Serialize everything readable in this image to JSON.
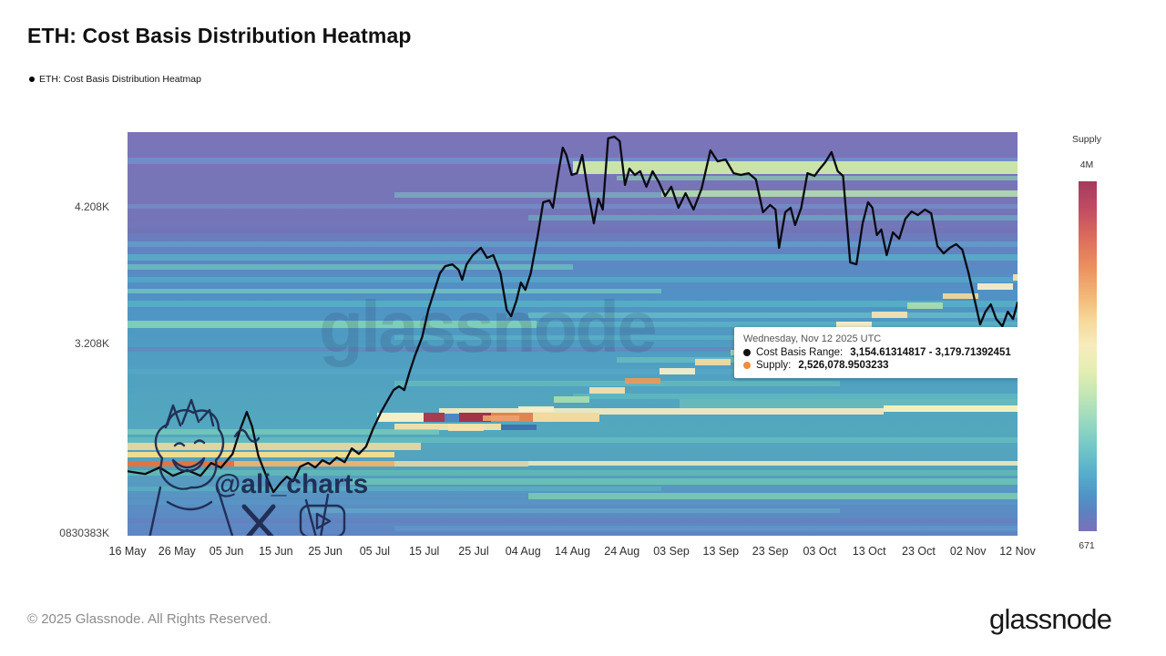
{
  "header": {
    "title": "ETH: Cost Basis Distribution Heatmap"
  },
  "legend": {
    "items": [
      {
        "marker": "dot-icon",
        "color": "#000000",
        "label": "ETH: Cost Basis Distribution Heatmap"
      }
    ]
  },
  "watermarks": {
    "glassnode": "glassnode",
    "handle": "@ali_charts",
    "icons": [
      "x-logo",
      "youtube-logo"
    ]
  },
  "tooltip": {
    "date_line": "Wednesday, Nov 12 2025 UTC",
    "rows": [
      {
        "marker_color": "#111111",
        "label": "Cost Basis Range:",
        "value": "3,154.61314817 - 3,179.71392451"
      },
      {
        "marker_color": "#f28b3b",
        "label": "Supply:",
        "value": "2,526,078.9503233"
      }
    ]
  },
  "colorbar": {
    "title": "Supply",
    "top_label": "4M",
    "bottom_label": "671",
    "stops": [
      "#a63a5e 0%",
      "#c14c63 8%",
      "#dc6c5c 16%",
      "#ec9260 25%",
      "#f3b878 33%",
      "#f6d99a 40%",
      "#f7ecbd 47%",
      "#e4eeb2 54%",
      "#c3e6b4 61%",
      "#9cdac0 68%",
      "#73c7c7 76%",
      "#57b0cb 83%",
      "#4f93c6 90%",
      "#5f7fc0 95%",
      "#7a72b7 100%"
    ]
  },
  "footer": {
    "copyright": "© 2025 Glassnode. All Rights Reserved.",
    "brand": "glassnode"
  },
  "chart_data": {
    "type": "heatmap",
    "title": "ETH: Cost Basis Distribution Heatmap",
    "legend_position": "top-left",
    "x_axis": {
      "ticks": [
        "16 May",
        "26 May",
        "05 Jun",
        "15 Jun",
        "25 Jun",
        "05 Jul",
        "15 Jul",
        "25 Jul",
        "04 Aug",
        "14 Aug",
        "24 Aug",
        "03 Sep",
        "13 Sep",
        "23 Sep",
        "03 Oct",
        "13 Oct",
        "23 Oct",
        "02 Nov",
        "12 Nov"
      ]
    },
    "y_axis": {
      "top_value": 4750,
      "bottom_value": 1810,
      "ticks": [
        {
          "label": "4.208K",
          "value": 4208
        },
        {
          "label": "3.208K",
          "value": 3208
        },
        {
          "label": "0830383K",
          "value": 1830
        }
      ]
    },
    "supply_scale": {
      "max_label": "4M",
      "min_label": "671"
    },
    "base_gradient": [
      "#7b74b9 0%",
      "#7674b8 22%",
      "#5f85c2 30%",
      "#5191c5 40%",
      "#4f9ac3 50%",
      "#51a2c0 62%",
      "#53a8bd 74%",
      "#55a0c0 84%",
      "#5b8cc3 94%",
      "#5e86c4 100%"
    ],
    "bands_format": "[yFrac, hFrac, x0Frac, x1Frac, color, opacity] — horizontal supply-concentration stripes of the heatmap",
    "bands": [
      [
        0.063,
        0.016,
        0.0,
        1.0,
        "#6f94cf",
        0.75
      ],
      [
        0.072,
        0.032,
        0.5,
        1.0,
        "#cfe9a6",
        0.95
      ],
      [
        0.108,
        0.012,
        0.55,
        1.0,
        "#8fd2b4",
        0.65
      ],
      [
        0.145,
        0.016,
        0.6,
        1.0,
        "#b6e4ae",
        0.85
      ],
      [
        0.15,
        0.012,
        0.3,
        0.6,
        "#7cc6c4",
        0.55
      ],
      [
        0.178,
        0.012,
        0.0,
        1.0,
        "#6e9ed0",
        0.5
      ],
      [
        0.205,
        0.014,
        0.45,
        1.0,
        "#64b9c2",
        0.6
      ],
      [
        0.238,
        0.012,
        0.0,
        1.0,
        "#7372b4",
        0.7
      ],
      [
        0.272,
        0.012,
        0.0,
        1.0,
        "#5fa8cc",
        0.65
      ],
      [
        0.302,
        0.016,
        0.0,
        1.0,
        "#58b1c4",
        0.75
      ],
      [
        0.328,
        0.012,
        0.0,
        0.5,
        "#6fc6c0",
        0.7
      ],
      [
        0.358,
        0.014,
        0.0,
        1.0,
        "#55aecb",
        0.7
      ],
      [
        0.388,
        0.012,
        0.0,
        0.6,
        "#79cdbd",
        0.7
      ],
      [
        0.418,
        0.016,
        0.0,
        1.0,
        "#57b4c6",
        0.75
      ],
      [
        0.448,
        0.012,
        0.45,
        1.0,
        "#6cc8c2",
        0.65
      ],
      [
        0.467,
        0.018,
        0.0,
        0.46,
        "#82d4b2",
        0.9
      ],
      [
        0.47,
        0.014,
        0.46,
        1.0,
        "#62bdc4",
        0.6
      ],
      [
        0.503,
        0.012,
        0.3,
        1.0,
        "#5fb9c8",
        0.6
      ],
      [
        0.532,
        0.012,
        0.0,
        1.0,
        "#6a7fbe",
        0.55
      ],
      [
        0.558,
        0.014,
        0.55,
        1.0,
        "#6fc9c0",
        0.6
      ],
      [
        0.588,
        0.012,
        0.0,
        1.0,
        "#59a8ca",
        0.6
      ],
      [
        0.617,
        0.012,
        0.3,
        0.8,
        "#72cabc",
        0.5
      ],
      [
        0.647,
        0.014,
        0.5,
        1.0,
        "#66c2c2",
        0.6
      ],
      [
        0.662,
        0.03,
        0.62,
        1.0,
        "#79ccba",
        0.5
      ],
      [
        0.683,
        0.017,
        0.35,
        0.85,
        "#f0e9c2",
        0.95
      ],
      [
        0.678,
        0.016,
        0.85,
        1.0,
        "#f4f0bd",
        1
      ],
      [
        0.695,
        0.022,
        0.28,
        0.333,
        "#f5eec7",
        1
      ],
      [
        0.695,
        0.022,
        0.333,
        0.356,
        "#a83a52",
        1
      ],
      [
        0.697,
        0.02,
        0.356,
        0.373,
        "#4f86bf",
        1
      ],
      [
        0.695,
        0.022,
        0.373,
        0.408,
        "#a23348",
        1
      ],
      [
        0.695,
        0.022,
        0.408,
        0.455,
        "#e1854f",
        1
      ],
      [
        0.695,
        0.022,
        0.455,
        0.53,
        "#f2d9a0",
        1
      ],
      [
        0.722,
        0.016,
        0.3,
        0.42,
        "#f3e3a8",
        0.95
      ],
      [
        0.724,
        0.014,
        0.42,
        0.46,
        "#3f6ab0",
        0.9
      ],
      [
        0.737,
        0.012,
        0.0,
        0.35,
        "#7fd0b8",
        0.7
      ],
      [
        0.757,
        0.012,
        0.0,
        1.0,
        "#6cc4c0",
        0.6
      ],
      [
        0.77,
        0.018,
        0.0,
        0.33,
        "#f0d9a0",
        0.9
      ],
      [
        0.792,
        0.014,
        0.0,
        0.3,
        "#f6df8e",
        0.95
      ],
      [
        0.815,
        0.014,
        0.0,
        0.12,
        "#e2743f",
        1
      ],
      [
        0.815,
        0.014,
        0.12,
        0.3,
        "#f0b36a",
        0.95
      ],
      [
        0.815,
        0.013,
        0.3,
        0.45,
        "#f2d9a0",
        0.85
      ],
      [
        0.815,
        0.012,
        0.45,
        1.0,
        "#efe9b8",
        0.9
      ],
      [
        0.838,
        0.014,
        0.0,
        1.0,
        "#62c2b2",
        0.7
      ],
      [
        0.858,
        0.016,
        0.25,
        1.0,
        "#6fcab4",
        0.75
      ],
      [
        0.878,
        0.012,
        0.0,
        0.6,
        "#58b8c0",
        0.6
      ],
      [
        0.895,
        0.014,
        0.45,
        1.0,
        "#7ed0b0",
        0.8
      ],
      [
        0.912,
        0.012,
        0.0,
        1.0,
        "#5898c8",
        0.5
      ],
      [
        0.932,
        0.012,
        0.2,
        0.8,
        "#6ab6c8",
        0.5
      ],
      [
        0.956,
        0.012,
        0.0,
        1.0,
        "#6b7cbc",
        0.6
      ],
      [
        0.976,
        0.012,
        0.3,
        1.0,
        "#5fa0c8",
        0.5
      ]
    ],
    "staircase": {
      "x0": 0.36,
      "y0": 0.725,
      "x1": 0.995,
      "y1": 0.352,
      "steps": 17,
      "seg_w": 0.04,
      "seg_h": 0.015,
      "colors": [
        "#f2e3ae",
        "#eda06a",
        "#f5eec7",
        "#a8dcae",
        "#f2e3ae",
        "#e89a5c",
        "#f5eec7",
        "#f2d9a0",
        "#9fd8a8",
        "#f2e3ae",
        "#ef9e62",
        "#f5eec7",
        "#f2e3ae",
        "#a8dcae",
        "#f0d898",
        "#f5eec7",
        "#f2e3ae"
      ]
    },
    "price_line": {
      "name": "ETH price",
      "color": "#0a0a12",
      "points_format": "[xFrac(16 May→12 Nov), price USD]",
      "points": [
        [
          0,
          2280
        ],
        [
          0.02,
          2260
        ],
        [
          0.036,
          2307
        ],
        [
          0.051,
          2247
        ],
        [
          0.067,
          2287
        ],
        [
          0.082,
          2247
        ],
        [
          0.094,
          2340
        ],
        [
          0.105,
          2306
        ],
        [
          0.118,
          2406
        ],
        [
          0.127,
          2592
        ],
        [
          0.134,
          2712
        ],
        [
          0.14,
          2605
        ],
        [
          0.147,
          2393
        ],
        [
          0.157,
          2227
        ],
        [
          0.164,
          2128
        ],
        [
          0.172,
          2194
        ],
        [
          0.179,
          2240
        ],
        [
          0.186,
          2207
        ],
        [
          0.194,
          2313
        ],
        [
          0.203,
          2340
        ],
        [
          0.211,
          2307
        ],
        [
          0.219,
          2360
        ],
        [
          0.227,
          2333
        ],
        [
          0.235,
          2380
        ],
        [
          0.244,
          2346
        ],
        [
          0.252,
          2446
        ],
        [
          0.26,
          2406
        ],
        [
          0.268,
          2459
        ],
        [
          0.276,
          2592
        ],
        [
          0.285,
          2712
        ],
        [
          0.293,
          2805
        ],
        [
          0.299,
          2871
        ],
        [
          0.305,
          2898
        ],
        [
          0.311,
          2871
        ],
        [
          0.317,
          3004
        ],
        [
          0.323,
          3123
        ],
        [
          0.331,
          3256
        ],
        [
          0.338,
          3455
        ],
        [
          0.345,
          3601
        ],
        [
          0.351,
          3721
        ],
        [
          0.357,
          3774
        ],
        [
          0.365,
          3787
        ],
        [
          0.372,
          3747
        ],
        [
          0.376,
          3674
        ],
        [
          0.381,
          3787
        ],
        [
          0.388,
          3854
        ],
        [
          0.397,
          3907
        ],
        [
          0.404,
          3834
        ],
        [
          0.411,
          3854
        ],
        [
          0.419,
          3721
        ],
        [
          0.426,
          3455
        ],
        [
          0.431,
          3409
        ],
        [
          0.437,
          3522
        ],
        [
          0.442,
          3654
        ],
        [
          0.447,
          3601
        ],
        [
          0.453,
          3721
        ],
        [
          0.461,
          4000
        ],
        [
          0.467,
          4239
        ],
        [
          0.474,
          4252
        ],
        [
          0.478,
          4199
        ],
        [
          0.484,
          4451
        ],
        [
          0.489,
          4637
        ],
        [
          0.493,
          4584
        ],
        [
          0.499,
          4438
        ],
        [
          0.505,
          4451
        ],
        [
          0.511,
          4584
        ],
        [
          0.517,
          4332
        ],
        [
          0.524,
          4086
        ],
        [
          0.529,
          4265
        ],
        [
          0.534,
          4186
        ],
        [
          0.54,
          4704
        ],
        [
          0.547,
          4717
        ],
        [
          0.553,
          4684
        ],
        [
          0.559,
          4365
        ],
        [
          0.564,
          4484
        ],
        [
          0.57,
          4438
        ],
        [
          0.576,
          4465
        ],
        [
          0.583,
          4352
        ],
        [
          0.59,
          4465
        ],
        [
          0.597,
          4385
        ],
        [
          0.604,
          4285
        ],
        [
          0.611,
          4352
        ],
        [
          0.619,
          4199
        ],
        [
          0.627,
          4305
        ],
        [
          0.636,
          4186
        ],
        [
          0.645,
          4338
        ],
        [
          0.655,
          4617
        ],
        [
          0.663,
          4537
        ],
        [
          0.672,
          4551
        ],
        [
          0.681,
          4451
        ],
        [
          0.689,
          4438
        ],
        [
          0.698,
          4451
        ],
        [
          0.706,
          4405
        ],
        [
          0.714,
          4166
        ],
        [
          0.722,
          4219
        ],
        [
          0.728,
          4186
        ],
        [
          0.732,
          3907
        ],
        [
          0.739,
          4166
        ],
        [
          0.745,
          4199
        ],
        [
          0.75,
          4073
        ],
        [
          0.757,
          4199
        ],
        [
          0.764,
          4451
        ],
        [
          0.772,
          4431
        ],
        [
          0.778,
          4484
        ],
        [
          0.784,
          4531
        ],
        [
          0.791,
          4604
        ],
        [
          0.798,
          4465
        ],
        [
          0.804,
          4431
        ],
        [
          0.812,
          3801
        ],
        [
          0.819,
          3787
        ],
        [
          0.826,
          4086
        ],
        [
          0.832,
          4239
        ],
        [
          0.837,
          4199
        ],
        [
          0.842,
          4000
        ],
        [
          0.847,
          4040
        ],
        [
          0.853,
          3854
        ],
        [
          0.86,
          4020
        ],
        [
          0.867,
          3973
        ],
        [
          0.874,
          4119
        ],
        [
          0.881,
          4172
        ],
        [
          0.888,
          4146
        ],
        [
          0.896,
          4186
        ],
        [
          0.903,
          4159
        ],
        [
          0.91,
          3920
        ],
        [
          0.917,
          3867
        ],
        [
          0.924,
          3907
        ],
        [
          0.931,
          3934
        ],
        [
          0.938,
          3894
        ],
        [
          0.945,
          3721
        ],
        [
          0.952,
          3522
        ],
        [
          0.958,
          3349
        ],
        [
          0.964,
          3442
        ],
        [
          0.97,
          3495
        ],
        [
          0.976,
          3389
        ],
        [
          0.983,
          3336
        ],
        [
          0.989,
          3442
        ],
        [
          0.995,
          3389
        ],
        [
          1,
          3508
        ]
      ]
    }
  }
}
